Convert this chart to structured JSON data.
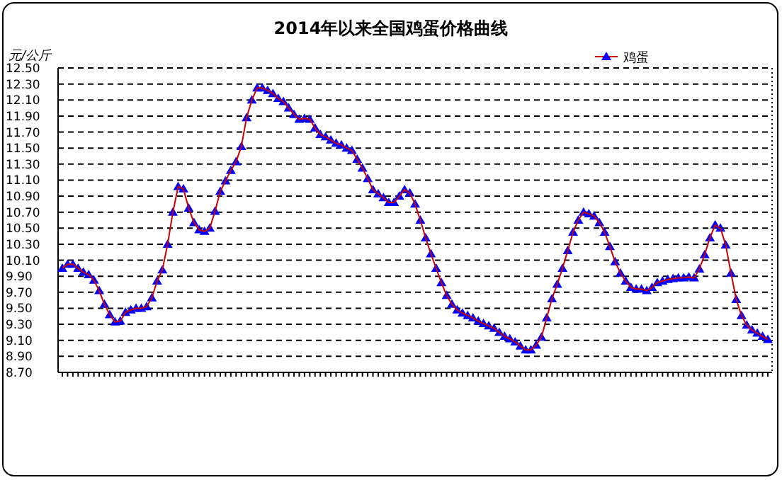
{
  "chart_data": {
    "type": "line",
    "title": "2014年以来全国鸡蛋价格曲线",
    "ylabel": "元/公斤",
    "categories": [
      null,
      null,
      null,
      null,
      null,
      null,
      null,
      null,
      null,
      null,
      null,
      null,
      null,
      null,
      null,
      null,
      null,
      null,
      null,
      null,
      null,
      null,
      null,
      null,
      null,
      null,
      null,
      null,
      null,
      null,
      null,
      null,
      null,
      null,
      null,
      null,
      null,
      null,
      null,
      null,
      null,
      null,
      null,
      null,
      null,
      null,
      null,
      null,
      null,
      null,
      null,
      null,
      null,
      null,
      null,
      null,
      null,
      null,
      null,
      null,
      null,
      null,
      null,
      null,
      null,
      null,
      null,
      null,
      null,
      null,
      null,
      null,
      null,
      null,
      null,
      null,
      null,
      null,
      null,
      null,
      null,
      null,
      null,
      null,
      null,
      null,
      null,
      null,
      null,
      null,
      null,
      null,
      null,
      null,
      null,
      null,
      null,
      null,
      null,
      null,
      null,
      null,
      null,
      null,
      null,
      null,
      null,
      null,
      null,
      null,
      null,
      null,
      null,
      null,
      null,
      null,
      null,
      null,
      null,
      null,
      null,
      null,
      null,
      null,
      null,
      null,
      null,
      null,
      null,
      null,
      null,
      null,
      null,
      null,
      null
    ],
    "series": [
      {
        "name": "鸡蛋",
        "color": "#0000ff",
        "values": [
          10.0,
          10.05,
          10.05,
          10.0,
          9.95,
          9.92,
          9.85,
          9.72,
          9.55,
          9.42,
          9.33,
          9.34,
          9.45,
          9.48,
          9.5,
          9.5,
          9.52,
          9.63,
          9.84,
          9.98,
          10.3,
          10.7,
          11.02,
          10.99,
          10.75,
          10.57,
          10.48,
          10.46,
          10.5,
          10.71,
          10.96,
          11.09,
          11.22,
          11.33,
          11.52,
          11.88,
          12.1,
          12.25,
          12.25,
          12.22,
          12.18,
          12.12,
          12.08,
          12.0,
          11.92,
          11.86,
          11.87,
          11.86,
          11.75,
          11.67,
          11.64,
          11.6,
          11.56,
          11.54,
          11.5,
          11.47,
          11.36,
          11.25,
          11.12,
          10.98,
          10.93,
          10.88,
          10.82,
          10.82,
          10.9,
          10.98,
          10.94,
          10.8,
          10.6,
          10.38,
          10.18,
          10.0,
          9.82,
          9.66,
          9.55,
          9.48,
          9.44,
          9.41,
          9.38,
          9.34,
          9.31,
          9.28,
          9.25,
          9.2,
          9.15,
          9.12,
          9.08,
          9.03,
          8.98,
          8.98,
          9.04,
          9.14,
          9.38,
          9.62,
          9.8,
          10.0,
          10.22,
          10.45,
          10.6,
          10.7,
          10.68,
          10.65,
          10.57,
          10.45,
          10.27,
          10.08,
          9.94,
          9.84,
          9.76,
          9.74,
          9.74,
          9.72,
          9.76,
          9.82,
          9.84,
          9.86,
          9.87,
          9.88,
          9.88,
          9.89,
          9.88,
          9.99,
          10.17,
          10.38,
          10.54,
          10.5,
          10.29,
          9.94,
          9.61,
          9.41,
          9.29,
          9.23,
          9.19,
          9.15,
          9.11
        ]
      }
    ],
    "ylim": [
      8.7,
      12.5
    ],
    "yticks": [
      {
        "value": 8.7,
        "label": "8.70"
      },
      {
        "value": 8.9,
        "label": "8.90"
      },
      {
        "value": 9.1,
        "label": "9.10"
      },
      {
        "value": 9.3,
        "label": "9.30"
      },
      {
        "value": 9.5,
        "label": "9.50"
      },
      {
        "value": 9.7,
        "label": "9.70"
      },
      {
        "value": 9.9,
        "label": "9.90"
      },
      {
        "value": 10.1,
        "label": "10.10"
      },
      {
        "value": 10.3,
        "label": "10.30"
      },
      {
        "value": 10.5,
        "label": "10.50"
      },
      {
        "value": 10.7,
        "label": "10.70"
      },
      {
        "value": 10.9,
        "label": "10.90"
      },
      {
        "value": 11.1,
        "label": "11.10"
      },
      {
        "value": 11.3,
        "label": "11.30"
      },
      {
        "value": 11.5,
        "label": "11.50"
      },
      {
        "value": 11.7,
        "label": "11.70"
      },
      {
        "value": 11.9,
        "label": "11.90"
      },
      {
        "value": 12.1,
        "label": "12.10"
      },
      {
        "value": 12.3,
        "label": "12.30"
      },
      {
        "value": 12.5,
        "label": "12.50"
      }
    ],
    "grid": "y",
    "legend": "top right",
    "marker": "triangle",
    "line_style": "solid"
  }
}
